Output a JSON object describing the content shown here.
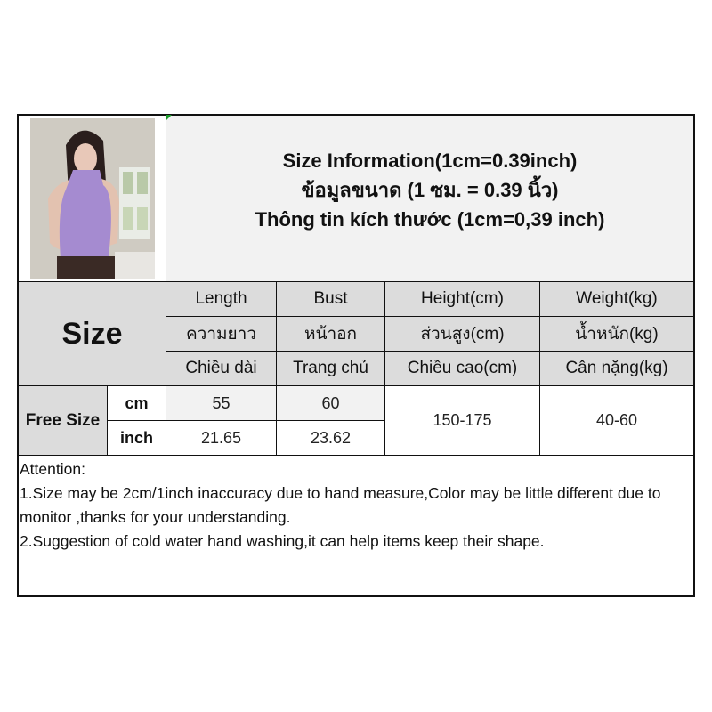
{
  "title": {
    "en": "Size Information(1cm=0.39inch)",
    "th": "ข้อมูลขนาด (1 ซม. = 0.39 นิ้ว)",
    "vi": "Thông tin kích thước (1cm=0,39 inch)"
  },
  "table": {
    "size_label": "Size",
    "columns": [
      {
        "en": "Length",
        "th": "ความยาว",
        "vi": "Chiều dài"
      },
      {
        "en": "Bust",
        "th": "หน้าอก",
        "vi": "Trang chủ"
      },
      {
        "en": "Height(cm)",
        "th": "ส่วนสูง(cm)",
        "vi": "Chiều cao(cm)"
      },
      {
        "en": "Weight(kg)",
        "th": "น้ำหนัก(kg)",
        "vi": "Cân nặng(kg)"
      }
    ],
    "row_label": "Free Size",
    "units": [
      "cm",
      "inch"
    ],
    "cm_values": [
      "55",
      "60"
    ],
    "inch_values": [
      "21.65",
      "23.62"
    ],
    "height": "150-175",
    "weight": "40-60"
  },
  "attention": {
    "heading": "Attention:",
    "line1": "1.Size may be 2cm/1inch inaccuracy due to hand measure,Color may be little different due to monitor ,thanks for your understanding.",
    "line2": "2.Suggestion of cold water hand washing,it can help items keep their shape."
  },
  "colors": {
    "header_gray": "#dcdcdc",
    "light_gray": "#f2f2f2",
    "top_purple": "#a58bd0"
  }
}
